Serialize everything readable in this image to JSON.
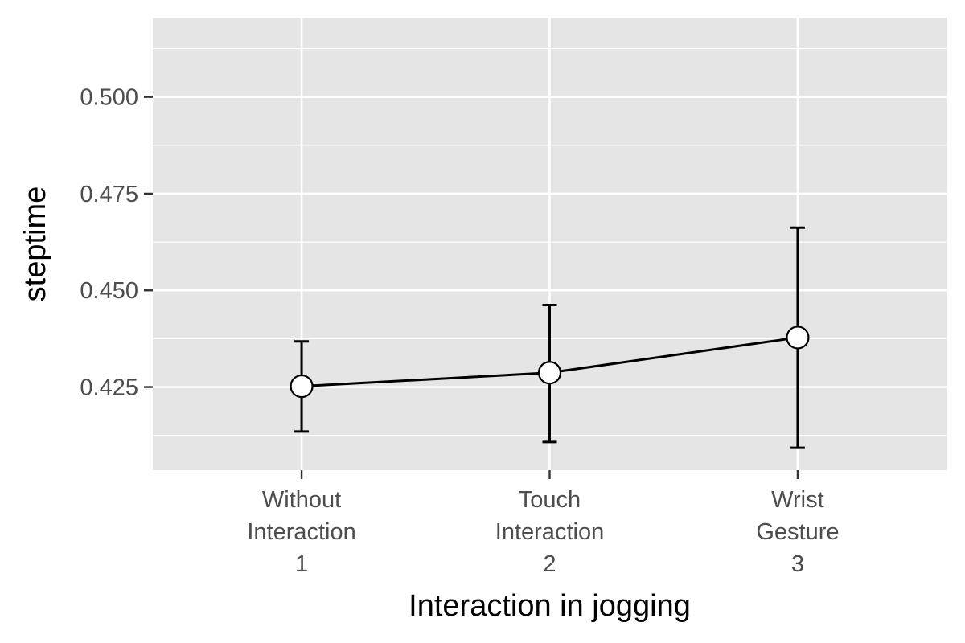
{
  "chart_data": {
    "type": "line",
    "title": "",
    "xlabel": "Interaction in jogging",
    "ylabel": "steptime",
    "categories": [
      {
        "lines": [
          "Without",
          "Interaction",
          "1"
        ]
      },
      {
        "lines": [
          "Touch",
          "Interaction",
          "2"
        ]
      },
      {
        "lines": [
          "Wrist",
          "Gesture",
          "3"
        ]
      }
    ],
    "series": [
      {
        "values": [
          0.4252,
          0.4287,
          0.4378
        ],
        "error_lower": [
          0.4135,
          0.4108,
          0.4093
        ],
        "error_upper": [
          0.4368,
          0.4462,
          0.4662
        ]
      }
    ],
    "ylim": [
      0.4035,
      0.5205
    ],
    "yticks": [
      0.425,
      0.45,
      0.475,
      0.5
    ],
    "ytick_labels": [
      "0.425",
      "0.450",
      "0.475",
      "0.500"
    ],
    "grid": true,
    "legend": "none",
    "colors": {
      "panel_background": "#e5e5e5",
      "grid": "#ffffff",
      "line": "#000000",
      "point_fill": "#ffffff",
      "tick_text": "#4d4d4d"
    }
  }
}
